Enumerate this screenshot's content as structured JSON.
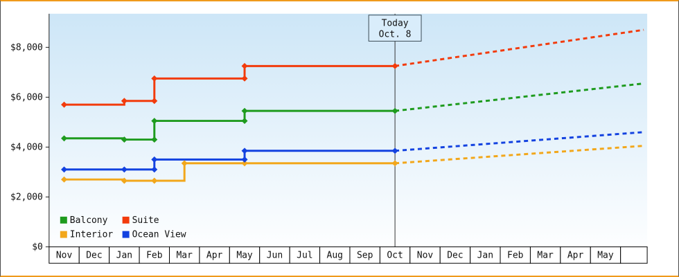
{
  "colors": {
    "frame_border": "#f09a1c",
    "side_border": "#4a4a4a",
    "plot_bg_top": "#cde6f7",
    "plot_bg_bottom": "#fdfeff",
    "axis": "#1a1a1a",
    "today_line": "#333333",
    "today_box_fill": "#d9edfb",
    "today_box_border": "#3a4a55",
    "month_cell_border": "#000000",
    "text": "#111111"
  },
  "chart_data": {
    "type": "line",
    "title": "",
    "xlabel": "",
    "ylabel": "",
    "ylim": [
      0,
      8000
    ],
    "grid": false,
    "y_ticks": [
      {
        "label": "$0",
        "value": 0
      },
      {
        "label": "$2,000",
        "value": 2000
      },
      {
        "label": "$4,000",
        "value": 4000
      },
      {
        "label": "$6,000",
        "value": 6000
      },
      {
        "label": "$8,000",
        "value": 8000
      }
    ],
    "months": [
      "Nov",
      "Dec",
      "Jan",
      "Feb",
      "Mar",
      "Apr",
      "May",
      "Jun",
      "Jul",
      "Aug",
      "Sep",
      "Oct",
      "Nov",
      "Dec",
      "Jan",
      "Feb",
      "Mar",
      "Apr",
      "May"
    ],
    "today": {
      "line1": "Today",
      "line2": "Oct. 8",
      "month_index": 11
    },
    "series": [
      {
        "name": "Balcony",
        "color": "#1e9b1e",
        "solid": [
          [
            0,
            4350
          ],
          [
            2,
            4350
          ],
          [
            2,
            4300
          ],
          [
            3,
            4300
          ],
          [
            3,
            5050
          ],
          [
            6,
            5050
          ],
          [
            6,
            5450
          ],
          [
            11,
            5450
          ]
        ],
        "markers": [
          [
            0,
            4350
          ],
          [
            2,
            4300
          ],
          [
            3,
            4300
          ],
          [
            3,
            5050
          ],
          [
            6,
            5050
          ],
          [
            6,
            5450
          ],
          [
            11,
            5450
          ]
        ],
        "forecast": {
          "start_month_index": 11,
          "start_value": 5450,
          "end_value": 6550
        }
      },
      {
        "name": "Suite",
        "color": "#f23b0c",
        "solid": [
          [
            0,
            5700
          ],
          [
            2,
            5700
          ],
          [
            2,
            5850
          ],
          [
            3,
            5850
          ],
          [
            3,
            6750
          ],
          [
            6,
            6750
          ],
          [
            6,
            7250
          ],
          [
            11,
            7250
          ]
        ],
        "markers": [
          [
            0,
            5700
          ],
          [
            2,
            5850
          ],
          [
            3,
            5850
          ],
          [
            3,
            6750
          ],
          [
            6,
            6750
          ],
          [
            6,
            7250
          ],
          [
            11,
            7250
          ]
        ],
        "forecast": {
          "start_month_index": 11,
          "start_value": 7250,
          "end_value": 8700
        }
      },
      {
        "name": "Interior",
        "color": "#f2a71b",
        "solid": [
          [
            0,
            2700
          ],
          [
            2,
            2700
          ],
          [
            2,
            2650
          ],
          [
            4,
            2650
          ],
          [
            4,
            3350
          ],
          [
            11,
            3350
          ]
        ],
        "markers": [
          [
            0,
            2700
          ],
          [
            2,
            2650
          ],
          [
            3,
            2650
          ],
          [
            4,
            3350
          ],
          [
            6,
            3350
          ],
          [
            11,
            3350
          ]
        ],
        "forecast": {
          "start_month_index": 11,
          "start_value": 3350,
          "end_value": 4050
        }
      },
      {
        "name": "Ocean View",
        "color": "#1342e0",
        "solid": [
          [
            0,
            3100
          ],
          [
            2,
            3100
          ],
          [
            3,
            3100
          ],
          [
            3,
            3500
          ],
          [
            6,
            3500
          ],
          [
            6,
            3850
          ],
          [
            11,
            3850
          ]
        ],
        "markers": [
          [
            0,
            3100
          ],
          [
            2,
            3100
          ],
          [
            3,
            3100
          ],
          [
            3,
            3500
          ],
          [
            6,
            3500
          ],
          [
            6,
            3850
          ],
          [
            11,
            3850
          ]
        ],
        "forecast": {
          "start_month_index": 11,
          "start_value": 3850,
          "end_value": 4600
        }
      }
    ],
    "legend": {
      "position": "bottom-left",
      "entries": [
        "Balcony",
        "Suite",
        "Interior",
        "Ocean View"
      ]
    }
  }
}
